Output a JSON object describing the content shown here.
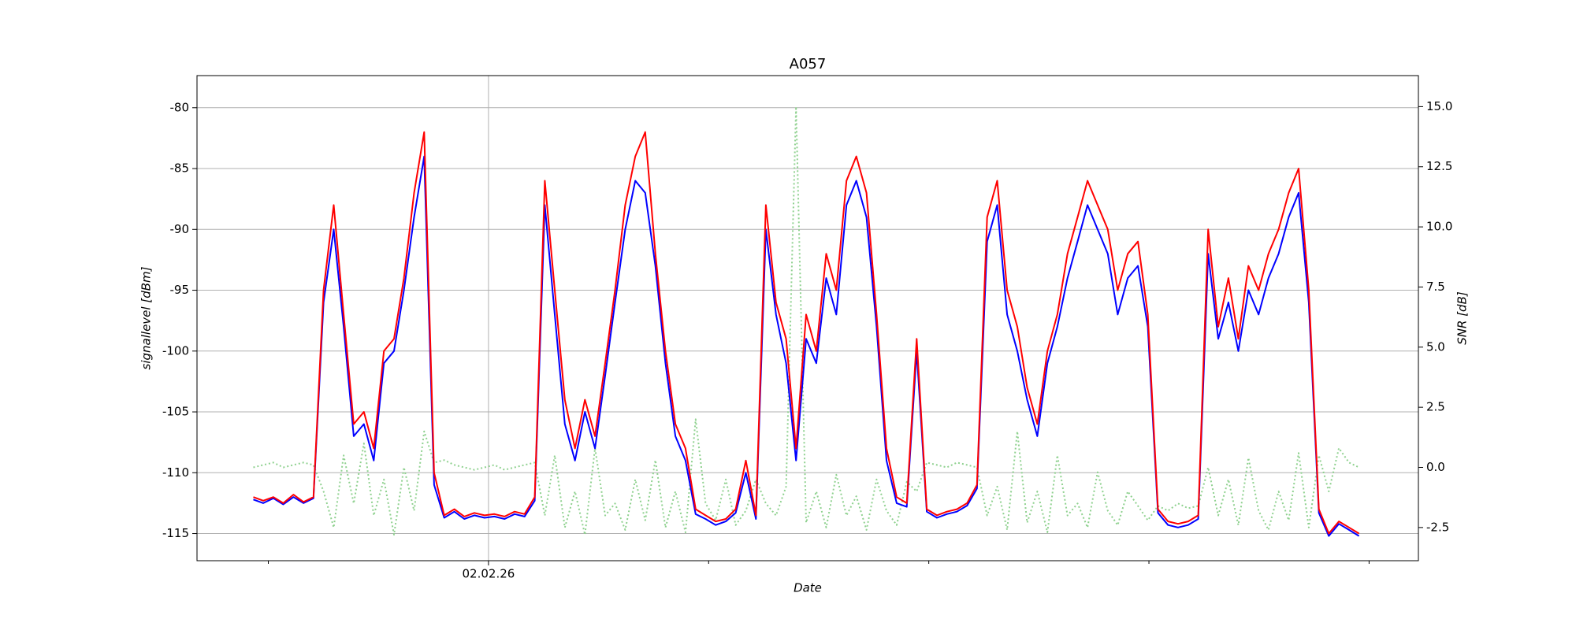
{
  "chart_data": {
    "type": "line",
    "title": "A057",
    "xlabel": "Date",
    "ylabel": "signallevel [dBm]",
    "y2label": "SNR [dB]",
    "xlim": [
      -0.324,
      5.224
    ],
    "xticks": [
      {
        "value": 1,
        "label": "02.02.26"
      }
    ],
    "xticks_minor": [
      0,
      2,
      3,
      4,
      5
    ],
    "ylim": [
      -117.23,
      -77.36
    ],
    "yticks": [
      -115,
      -110,
      -105,
      -100,
      -95,
      -90,
      -85,
      -80
    ],
    "y2lim": [
      -3.88,
      16.29
    ],
    "y2ticks": [
      -2.5,
      {
        "value": 0,
        "label": "0.0"
      },
      2.5,
      {
        "value": 5,
        "label": "5.0"
      },
      7.5,
      {
        "value": 10,
        "label": "10.0"
      },
      12.5,
      {
        "value": 15,
        "label": "15.0"
      }
    ],
    "grid": true,
    "x": [
      -0.068,
      -0.023,
      0.023,
      0.068,
      0.114,
      0.16,
      0.205,
      0.251,
      0.297,
      0.342,
      0.388,
      0.434,
      0.479,
      0.525,
      0.571,
      0.616,
      0.662,
      0.708,
      0.753,
      0.799,
      0.845,
      0.89,
      0.936,
      0.982,
      1.027,
      1.073,
      1.119,
      1.164,
      1.21,
      1.256,
      1.301,
      1.347,
      1.393,
      1.438,
      1.484,
      1.53,
      1.575,
      1.621,
      1.667,
      1.712,
      1.758,
      1.804,
      1.849,
      1.895,
      1.941,
      1.986,
      2.032,
      2.078,
      2.123,
      2.169,
      2.215,
      2.26,
      2.306,
      2.352,
      2.397,
      2.443,
      2.489,
      2.534,
      2.58,
      2.626,
      2.671,
      2.717,
      2.763,
      2.808,
      2.854,
      2.9,
      2.945,
      2.991,
      3.037,
      3.082,
      3.128,
      3.174,
      3.219,
      3.265,
      3.311,
      3.356,
      3.402,
      3.447,
      3.493,
      3.539,
      3.584,
      3.63,
      3.676,
      3.721,
      3.767,
      3.813,
      3.858,
      3.904,
      3.95,
      3.995,
      4.041,
      4.087,
      4.132,
      4.178,
      4.224,
      4.269,
      4.315,
      4.361,
      4.406,
      4.452,
      4.498,
      4.543,
      4.589,
      4.635,
      4.68,
      4.726,
      4.772,
      4.817,
      4.863,
      4.909,
      4.954
    ],
    "series": [
      {
        "color": "#ff0000",
        "style": "solid",
        "width": 2,
        "values": [
          -112,
          -112.3,
          -112,
          -112.5,
          -111.8,
          -112.4,
          -112,
          -95,
          -88,
          -97,
          -106,
          -105,
          -108,
          -100,
          -99,
          -94,
          -87,
          -82,
          -110,
          -113.5,
          -113,
          -113.6,
          -113.3,
          -113.5,
          -113.4,
          -113.6,
          -113.2,
          -113.4,
          -112,
          -86,
          -95,
          -104,
          -108,
          -104,
          -107,
          -101,
          -95,
          -88,
          -84,
          -82,
          -92,
          -100,
          -106,
          -108,
          -113,
          -113.5,
          -114,
          -113.8,
          -113,
          -109,
          -113.5,
          -88,
          -96,
          -99,
          -108,
          -97,
          -100,
          -92,
          -95,
          -86,
          -84,
          -87,
          -97,
          -108,
          -112,
          -112.5,
          -99,
          -113,
          -113.5,
          -113.2,
          -113,
          -112.5,
          -111,
          -89,
          -86,
          -95,
          -98,
          -103,
          -106,
          -100,
          -97,
          -92,
          -89,
          -86,
          -88,
          -90,
          -95,
          -92,
          -91,
          -97,
          -113,
          -114,
          -114.2,
          -114,
          -113.5,
          -90,
          -98,
          -94,
          -99,
          -93,
          -95,
          -92,
          -90,
          -87,
          -85,
          -95,
          -113,
          -115,
          -114,
          -114.5,
          -115
        ]
      },
      {
        "color": "#0000ff",
        "style": "solid",
        "width": 2,
        "values": [
          -112.2,
          -112.5,
          -112.1,
          -112.6,
          -112,
          -112.5,
          -112.1,
          -96,
          -90,
          -98,
          -107,
          -106,
          -109,
          -101,
          -100,
          -95,
          -89,
          -84,
          -111,
          -113.7,
          -113.2,
          -113.8,
          -113.5,
          -113.7,
          -113.6,
          -113.8,
          -113.4,
          -113.6,
          -112.3,
          -88,
          -97,
          -106,
          -109,
          -105,
          -108,
          -102,
          -96,
          -90,
          -86,
          -87,
          -93,
          -101,
          -107,
          -109,
          -113.4,
          -113.8,
          -114.3,
          -114,
          -113.3,
          -110,
          -113.8,
          -90,
          -97,
          -101,
          -109,
          -99,
          -101,
          -94,
          -97,
          -88,
          -86,
          -89,
          -98,
          -109,
          -112.5,
          -112.8,
          -100,
          -113.2,
          -113.7,
          -113.4,
          -113.2,
          -112.7,
          -111.3,
          -91,
          -88,
          -97,
          -100,
          -104,
          -107,
          -101,
          -98,
          -94,
          -91,
          -88,
          -90,
          -92,
          -97,
          -94,
          -93,
          -98,
          -113.3,
          -114.3,
          -114.5,
          -114.3,
          -113.8,
          -92,
          -99,
          -96,
          -100,
          -95,
          -97,
          -94,
          -92,
          -89,
          -87,
          -96,
          -113.3,
          -115.2,
          -114.2,
          -114.7,
          -115.2
        ]
      },
      {
        "color": "#8fd18f",
        "style": "dotted",
        "width": 2,
        "axis": "y2",
        "values": [
          0,
          0.1,
          0.2,
          0,
          0.1,
          0.2,
          0.1,
          -1,
          -2.5,
          0.5,
          -1.5,
          1,
          -2,
          -0.5,
          -2.8,
          0,
          -1.8,
          1.5,
          0.2,
          0.3,
          0.1,
          0,
          -0.1,
          0,
          0.1,
          -0.1,
          0,
          0.1,
          0.2,
          -2,
          0.5,
          -2.5,
          -1,
          -2.8,
          0.8,
          -2,
          -1.5,
          -2.6,
          -0.5,
          -2.2,
          0.3,
          -2.5,
          -1,
          -2.7,
          2,
          -1.5,
          -2.2,
          -0.5,
          -2.4,
          -1.8,
          -0.5,
          -1.5,
          -2,
          -0.8,
          15,
          -2.3,
          -1,
          -2.5,
          -0.3,
          -2,
          -1.2,
          -2.6,
          -0.5,
          -1.8,
          -2.4,
          -0.6,
          -1,
          0.2,
          0.1,
          0,
          0.2,
          0.1,
          0,
          -2,
          -0.8,
          -2.6,
          1.5,
          -2.3,
          -1,
          -2.7,
          0.5,
          -2,
          -1.5,
          -2.5,
          -0.2,
          -1.8,
          -2.4,
          -1,
          -1.6,
          -2.2,
          -1.6,
          -1.8,
          -1.5,
          -1.7,
          -1.6,
          0,
          -2,
          -0.5,
          -2.4,
          0.4,
          -1.8,
          -2.6,
          -1,
          -2.2,
          0.6,
          -2.5,
          0.5,
          -1,
          0.8,
          0.2,
          0
        ]
      }
    ]
  }
}
